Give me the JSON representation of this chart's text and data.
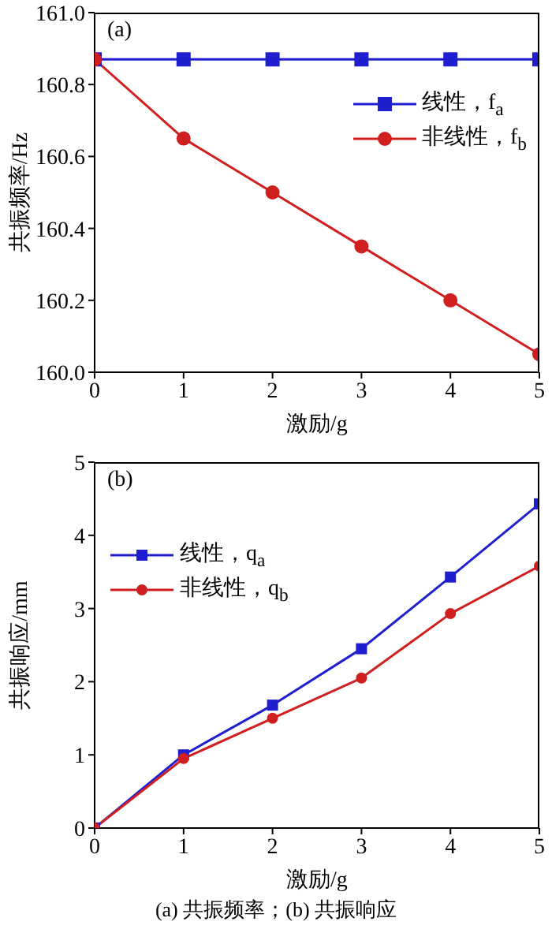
{
  "chart_data": [
    {
      "type": "line",
      "title": "(a)",
      "xlabel": "激励/g",
      "ylabel": "共振频率/Hz",
      "x": [
        0,
        1,
        2,
        3,
        4,
        5
      ],
      "xlim": [
        0,
        5
      ],
      "xticks": [
        0,
        1,
        2,
        3,
        4,
        5
      ],
      "ylim": [
        160.0,
        161.0
      ],
      "yticks": [
        {
          "value": 160.0,
          "label": "160.0"
        },
        160.2,
        160.4,
        160.6,
        160.8,
        {
          "value": 161.0,
          "label": "161.0"
        }
      ],
      "grid": false,
      "legend": "top right",
      "line_style": "solid",
      "series": [
        {
          "name": "线性，f$_{a}$",
          "color": "#1f1fd0",
          "marker": "square",
          "values": [
            160.87,
            160.87,
            160.87,
            160.87,
            160.87,
            160.87
          ]
        },
        {
          "name": "非线性，f$_{b}$",
          "color": "#d01f1f",
          "marker": "circle",
          "values": [
            160.87,
            160.65,
            160.5,
            160.35,
            160.2,
            160.05
          ]
        }
      ]
    },
    {
      "type": "line",
      "title": "(b)",
      "xlabel": "激励/g",
      "ylabel": "共振响应/mm",
      "x": [
        0,
        1,
        2,
        3,
        4,
        5
      ],
      "xlim": [
        0,
        5
      ],
      "xticks": [
        0,
        1,
        2,
        3,
        4,
        5
      ],
      "ylim": [
        0,
        5
      ],
      "yticks": [
        0,
        1,
        2,
        3,
        4,
        5
      ],
      "grid": false,
      "legend": "top left",
      "line_style": "solid",
      "annotations": [
        "(a) 共振频率；(b) 共振响应"
      ],
      "series": [
        {
          "name": "线性，q$_{a}$",
          "color": "#1f1fd0",
          "marker": "square",
          "values": [
            0,
            1.0,
            1.68,
            2.45,
            3.43,
            4.43
          ]
        },
        {
          "name": "非线性，q$_{b}$",
          "color": "#d01f1f",
          "marker": "circle",
          "values": [
            0,
            0.95,
            1.5,
            2.05,
            2.93,
            3.58
          ]
        }
      ]
    }
  ]
}
